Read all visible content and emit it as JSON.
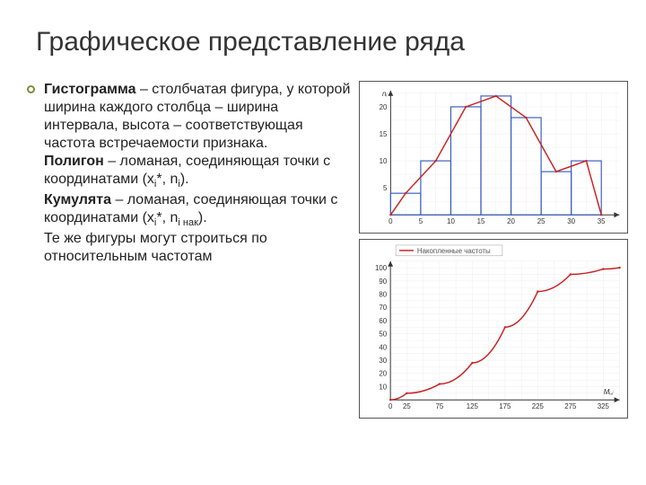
{
  "title": "Графическое представление ряда",
  "definitions": [
    {
      "term": "Гистограмма",
      "text": " – столбчатая фигура, у которой ширина каждого столбца – ширина интервала, высота – соответствующая частота встречаемости признака."
    },
    {
      "term": "Полигон",
      "text": " – ломаная, соединяющая точки с координатами (xᵢ*, nᵢ)."
    },
    {
      "term": "Кумулята",
      "text": " – ломаная, соединяющая точки с координатами (xᵢ*, nᵢ нак)."
    },
    {
      "term": "",
      "text": "Те же фигуры могут строиться по относительным частотам"
    }
  ],
  "chart1": {
    "type": "histogram+polygon",
    "background_color": "#ffffff",
    "grid_color": "#eeeeee",
    "axis_color": "#333333",
    "bar_stroke": "#3a5fbf",
    "curve_stroke": "#cc2222",
    "x_ticks": [
      0,
      5,
      10,
      15,
      20,
      25,
      30,
      35
    ],
    "y_ticks": [
      0,
      5,
      10,
      15,
      20
    ],
    "y_label": "nᵢ",
    "xlim": [
      0,
      38
    ],
    "ylim": [
      0,
      23
    ],
    "bars": [
      {
        "x0": 0,
        "x1": 5,
        "h": 4
      },
      {
        "x0": 5,
        "x1": 10,
        "h": 10
      },
      {
        "x0": 10,
        "x1": 15,
        "h": 20
      },
      {
        "x0": 15,
        "x1": 20,
        "h": 22
      },
      {
        "x0": 20,
        "x1": 25,
        "h": 18
      },
      {
        "x0": 25,
        "x1": 30,
        "h": 8
      },
      {
        "x0": 30,
        "x1": 35,
        "h": 10
      }
    ],
    "curve_points": [
      [
        0,
        0
      ],
      [
        2.5,
        4
      ],
      [
        7.5,
        10
      ],
      [
        12.5,
        20
      ],
      [
        17.5,
        22
      ],
      [
        22.5,
        18
      ],
      [
        27.5,
        8
      ],
      [
        32.5,
        10
      ],
      [
        35,
        0
      ]
    ],
    "tick_fontsize": 8
  },
  "chart2": {
    "type": "cumulative",
    "background_color": "#ffffff",
    "grid_color": "#eeeeee",
    "axis_color": "#333333",
    "curve_stroke": "#cc2222",
    "legend_text": "Накопленные частоты",
    "x_ticks_labels": [
      "0",
      "25",
      "75",
      "125",
      "175",
      "225",
      "275",
      "325"
    ],
    "x_ticks_pos": [
      0,
      25,
      75,
      125,
      175,
      225,
      275,
      325
    ],
    "y_ticks": [
      0,
      10,
      20,
      30,
      40,
      50,
      60,
      70,
      80,
      90,
      100
    ],
    "xlim": [
      0,
      350
    ],
    "ylim": [
      0,
      105
    ],
    "x_axis_label": "Mᵢ,ᵢ",
    "curve_points": [
      [
        0,
        0
      ],
      [
        25,
        5
      ],
      [
        75,
        12
      ],
      [
        125,
        28
      ],
      [
        175,
        55
      ],
      [
        225,
        82
      ],
      [
        275,
        95
      ],
      [
        325,
        99
      ],
      [
        350,
        100
      ]
    ],
    "tick_fontsize": 8
  }
}
